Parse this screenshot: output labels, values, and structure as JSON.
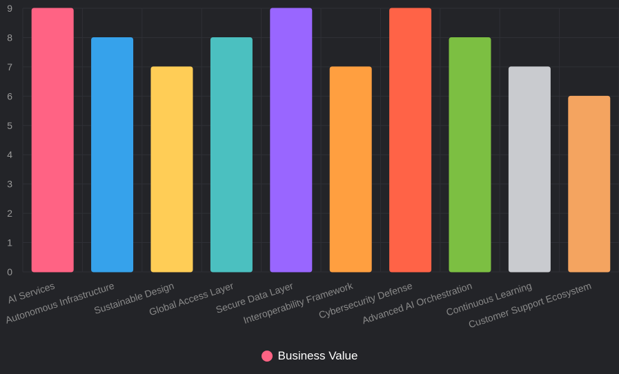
{
  "chart_data": {
    "type": "bar",
    "title": "",
    "xlabel": "",
    "ylabel": "",
    "ylim": [
      0,
      9
    ],
    "yticks": [
      0,
      1,
      2,
      3,
      4,
      5,
      6,
      7,
      8,
      9
    ],
    "grid": true,
    "legend_position": "bottom-center",
    "categories": [
      "AI Services",
      "Autonomous Infrastructure",
      "Sustainable Design",
      "Global Access Layer",
      "Secure Data Layer",
      "Interoperability Framework",
      "Cybersecurity Defense",
      "Advanced AI Orchestration",
      "Continuous Learning",
      "Customer Support Ecosystem"
    ],
    "series": [
      {
        "name": "Business Value",
        "values": [
          9,
          8,
          7,
          8,
          9,
          7,
          9,
          8,
          7,
          6
        ],
        "colors": [
          "#ff6384",
          "#36a2eb",
          "#ffcd56",
          "#4bc0c0",
          "#9966ff",
          "#ff9f40",
          "#ff6347",
          "#7cbf42",
          "#c9cbcf",
          "#f4a460"
        ]
      }
    ]
  },
  "legend": {
    "label": "Business Value",
    "color": "#ff6384"
  }
}
